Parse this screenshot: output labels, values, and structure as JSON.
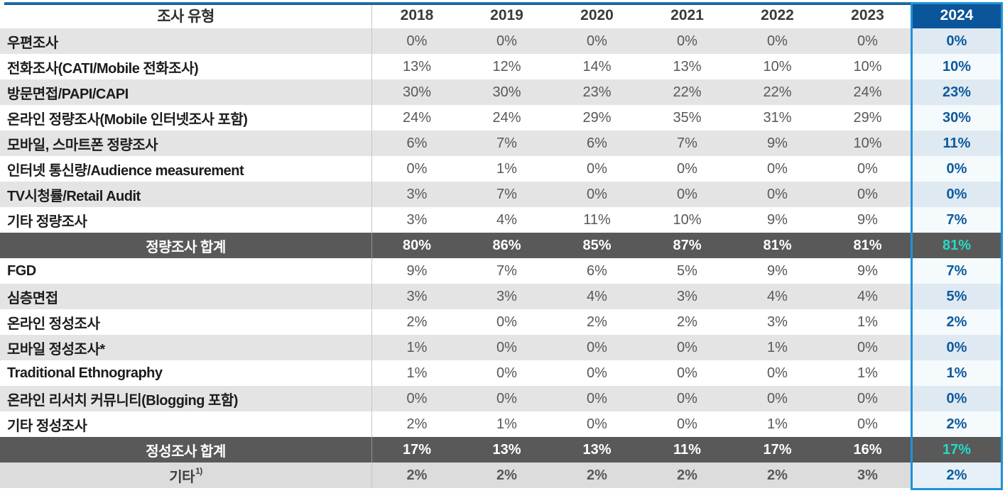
{
  "chart_data": {
    "type": "table",
    "columns": [
      "조사 유형",
      "2018",
      "2019",
      "2020",
      "2021",
      "2022",
      "2023",
      "2024"
    ],
    "highlighted_column": "2024",
    "rows": [
      {
        "label": "우편조사",
        "type": "data",
        "values": [
          "0%",
          "0%",
          "0%",
          "0%",
          "0%",
          "0%",
          "0%"
        ]
      },
      {
        "label": "전화조사(CATI/Mobile 전화조사)",
        "type": "data",
        "values": [
          "13%",
          "12%",
          "14%",
          "13%",
          "10%",
          "10%",
          "10%"
        ]
      },
      {
        "label": "방문면접/PAPI/CAPI",
        "type": "data",
        "values": [
          "30%",
          "30%",
          "23%",
          "22%",
          "22%",
          "24%",
          "23%"
        ]
      },
      {
        "label": "온라인 정량조사(Mobile 인터넷조사 포함)",
        "type": "data",
        "values": [
          "24%",
          "24%",
          "29%",
          "35%",
          "31%",
          "29%",
          "30%"
        ]
      },
      {
        "label": "모바일, 스마트폰 정량조사",
        "type": "data",
        "values": [
          "6%",
          "7%",
          "6%",
          "7%",
          "9%",
          "10%",
          "11%"
        ]
      },
      {
        "label": "인터넷 통신량/Audience measurement",
        "type": "data",
        "values": [
          "0%",
          "1%",
          "0%",
          "0%",
          "0%",
          "0%",
          "0%"
        ]
      },
      {
        "label": "TV시청률/Retail Audit",
        "type": "data",
        "values": [
          "3%",
          "7%",
          "0%",
          "0%",
          "0%",
          "0%",
          "0%"
        ]
      },
      {
        "label": "기타 정량조사",
        "type": "data",
        "values": [
          "3%",
          "4%",
          "11%",
          "10%",
          "9%",
          "9%",
          "7%"
        ]
      },
      {
        "label": "정량조사 합계",
        "type": "total",
        "values": [
          "80%",
          "86%",
          "85%",
          "87%",
          "81%",
          "81%",
          "81%"
        ]
      },
      {
        "label": "FGD",
        "type": "data",
        "values": [
          "9%",
          "7%",
          "6%",
          "5%",
          "9%",
          "9%",
          "7%"
        ]
      },
      {
        "label": "심층면접",
        "type": "data",
        "values": [
          "3%",
          "3%",
          "4%",
          "3%",
          "4%",
          "4%",
          "5%"
        ]
      },
      {
        "label": "온라인 정성조사",
        "type": "data",
        "values": [
          "2%",
          "0%",
          "2%",
          "2%",
          "3%",
          "1%",
          "2%"
        ]
      },
      {
        "label": "모바일 정성조사*",
        "type": "data",
        "values": [
          "1%",
          "0%",
          "0%",
          "0%",
          "1%",
          "0%",
          "0%"
        ]
      },
      {
        "label": "Traditional Ethnography",
        "type": "data",
        "values": [
          "1%",
          "0%",
          "0%",
          "0%",
          "0%",
          "1%",
          "1%"
        ]
      },
      {
        "label": "온라인 리서치 커뮤니티(Blogging 포함)",
        "type": "data",
        "values": [
          "0%",
          "0%",
          "0%",
          "0%",
          "0%",
          "0%",
          "0%"
        ]
      },
      {
        "label": "기타 정성조사",
        "type": "data",
        "values": [
          "2%",
          "1%",
          "0%",
          "0%",
          "1%",
          "0%",
          "2%"
        ]
      },
      {
        "label": "정성조사 합계",
        "type": "total",
        "values": [
          "17%",
          "13%",
          "13%",
          "11%",
          "17%",
          "16%",
          "17%"
        ]
      },
      {
        "label": "기타",
        "label_sup": "1)",
        "type": "other",
        "values": [
          "2%",
          "2%",
          "2%",
          "2%",
          "2%",
          "3%",
          "2%"
        ]
      }
    ]
  },
  "colors": {
    "accent_frame": "#1e93d6",
    "header_2024_bg": "#0b559a",
    "value_2024_text": "#0c5a9c",
    "total_row_bg": "#595959",
    "total_2024_text": "#27d9c4",
    "row_alt_bg": "#e4e4e4",
    "other_row_bg": "#dcdcdc",
    "top_line": "#15527e"
  }
}
